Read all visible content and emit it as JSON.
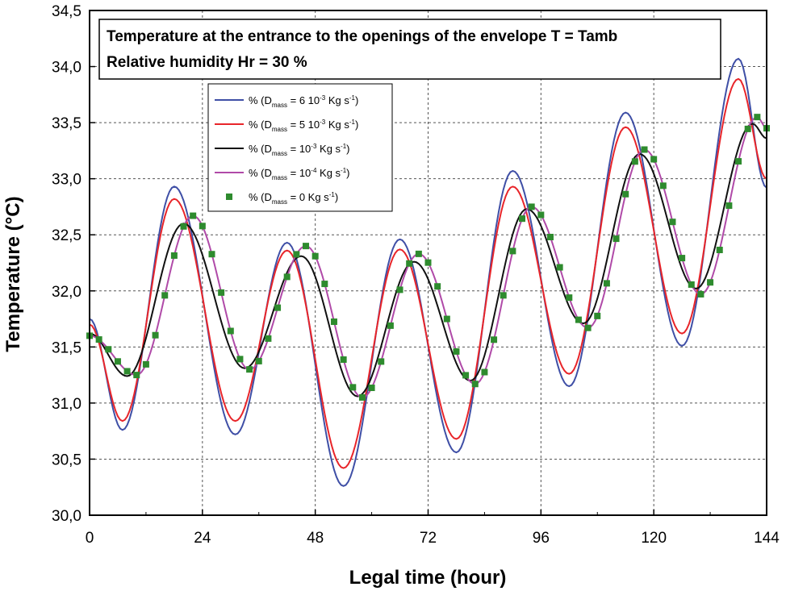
{
  "chart_data": {
    "type": "line",
    "title": "",
    "xlabel": "Legal time (hour)",
    "ylabel": "Temperature (°C)",
    "xlim": [
      0,
      144
    ],
    "ylim": [
      30.0,
      34.5
    ],
    "xticks": [
      0,
      24,
      48,
      72,
      96,
      120,
      144
    ],
    "xtick_labels": [
      "0",
      "24",
      "48",
      "72",
      "96",
      "120",
      "144"
    ],
    "yticks": [
      30.0,
      30.5,
      31.0,
      31.5,
      32.0,
      32.5,
      33.0,
      33.5,
      34.0,
      34.5
    ],
    "ytick_labels": [
      "30,0",
      "30,5",
      "31,0",
      "31,5",
      "32,0",
      "32,5",
      "33,0",
      "33,5",
      "34,0",
      "34,5"
    ],
    "grid": true,
    "annotation_lines": [
      "Temperature at the entrance to the openings of the envelope T = Tamb",
      "Relative humidity Hr = 30 %"
    ],
    "legend_position": "upper-left",
    "series": [
      {
        "name": "% (Dmass = 6 10-3 Kg s-1)",
        "legend": {
          "pre": "% (D",
          "sub": "mass",
          "mid": " = 6 10",
          "sup1": "-3",
          "mid2": " Kg s",
          "sup2": "-1",
          "post": ")"
        },
        "color": "#3f4fa6",
        "style": "line",
        "x": [
          0,
          7,
          18,
          31,
          42,
          54,
          66,
          78,
          90,
          102,
          114,
          126,
          138,
          144
        ],
        "y": [
          31.75,
          30.76,
          32.93,
          30.72,
          32.43,
          30.26,
          32.46,
          30.56,
          33.07,
          31.15,
          33.59,
          31.51,
          34.07,
          32.92
        ]
      },
      {
        "name": "% (Dmass = 5 10-3 Kg s-1)",
        "legend": {
          "pre": "% (D",
          "sub": "mass",
          "mid": " = 5 10",
          "sup1": "-3",
          "mid2": " Kg s",
          "sup2": "-1",
          "post": ")"
        },
        "color": "#e8252a",
        "style": "line",
        "x": [
          0,
          7,
          18,
          31,
          42,
          54,
          66,
          78,
          90,
          102,
          114,
          126,
          138,
          144
        ],
        "y": [
          31.7,
          30.84,
          32.82,
          30.84,
          32.36,
          30.42,
          32.37,
          30.68,
          32.93,
          31.26,
          33.46,
          31.62,
          33.89,
          33.0
        ]
      },
      {
        "name": "% (Dmass = 10-3 Kg s-1)",
        "legend": {
          "pre": "% (D",
          "sub": "mass",
          "mid": " = 10",
          "sup1": "-3",
          "mid2": " Kg s",
          "sup2": "-1",
          "post": ")"
        },
        "color": "#111111",
        "style": "line",
        "x": [
          0,
          8,
          20,
          33,
          45,
          57,
          69,
          81,
          93,
          105,
          117,
          129,
          141,
          144
        ],
        "y": [
          31.62,
          31.24,
          32.6,
          31.31,
          32.31,
          31.06,
          32.26,
          31.2,
          32.73,
          31.71,
          33.22,
          32.02,
          33.49,
          33.36
        ]
      },
      {
        "name": "% (Dmass = 10-4 Kg s-1)",
        "legend": {
          "pre": "% (D",
          "sub": "mass",
          "mid": " = 10",
          "sup1": "-4",
          "mid2": " Kg s",
          "sup2": "-1",
          "post": ")"
        },
        "color": "#b04aa8",
        "style": "line",
        "x": [
          0,
          10,
          22,
          34,
          46,
          58,
          70,
          82,
          94,
          106,
          118,
          130,
          142,
          144
        ],
        "y": [
          31.6,
          31.25,
          32.67,
          31.3,
          32.4,
          31.05,
          32.33,
          31.17,
          32.75,
          31.67,
          33.26,
          31.97,
          33.55,
          33.45
        ]
      },
      {
        "name": "% (Dmass = 0 Kg s-1)",
        "legend": {
          "pre": "% (D",
          "sub": "mass",
          "mid": " = 0 Kg s",
          "sup1": "",
          "mid2": "",
          "sup2": "-1",
          "post": ")"
        },
        "color": "#2e8b2e",
        "style": "markers",
        "x": [
          0,
          10,
          22,
          34,
          46,
          58,
          70,
          82,
          94,
          106,
          118,
          130,
          142,
          144
        ],
        "y": [
          31.6,
          31.25,
          32.67,
          31.3,
          32.4,
          31.05,
          32.33,
          31.17,
          32.75,
          31.67,
          33.26,
          31.97,
          33.55,
          33.45
        ]
      }
    ]
  }
}
